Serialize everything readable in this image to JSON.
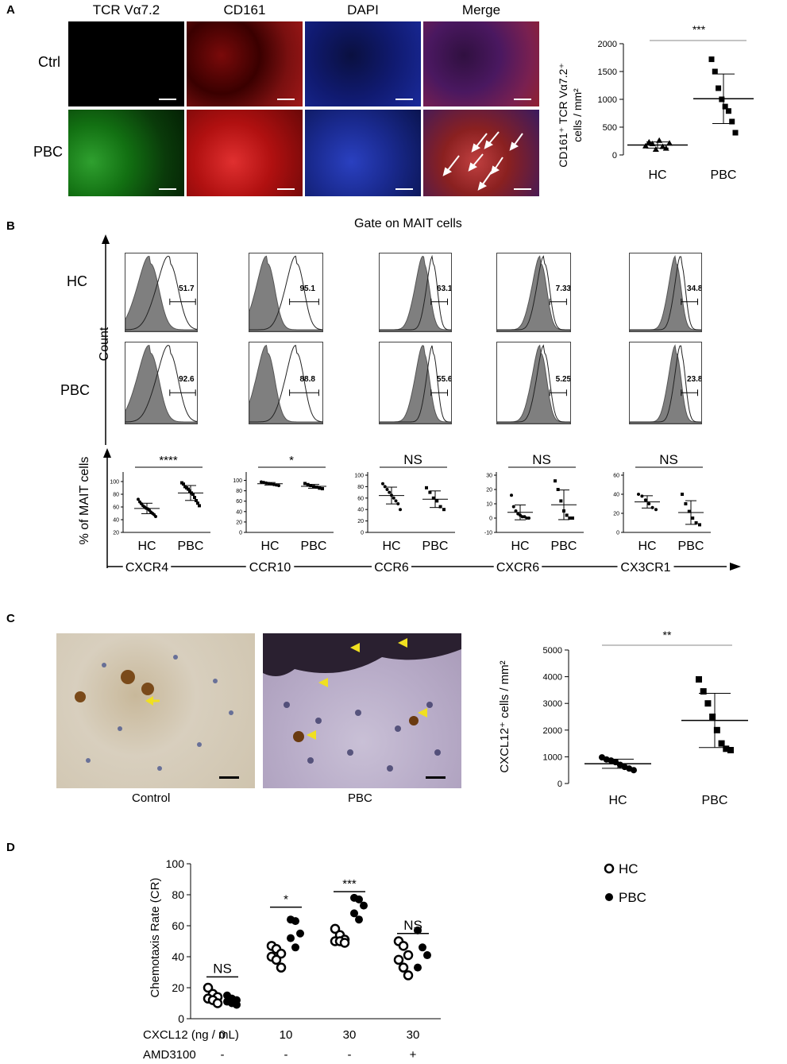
{
  "panel_a": {
    "label": "A",
    "headers": [
      "TCR Vα7.2",
      "CD161",
      "DAPI",
      "Merge"
    ],
    "header_colors": [
      "#3cb93c",
      "#e02020",
      "#2244cc",
      "#1a7a1a"
    ],
    "rows": [
      "Ctrl",
      "PBC"
    ],
    "chart": {
      "ylabel_line1": "CD161⁺ TCR Vα7.2⁺",
      "ylabel_line2": "cells / mm²",
      "yticks": [
        "0",
        "500",
        "1000",
        "1500",
        "2000"
      ],
      "categories": [
        "HC",
        "PBC"
      ],
      "significance": "***"
    }
  },
  "panel_b": {
    "label": "B",
    "title": "Gate on MAIT cells",
    "count_label": "Count",
    "rows": [
      "HC",
      "PBC"
    ],
    "markers": [
      "CXCR4",
      "CCR10",
      "CCR6",
      "CXCR6",
      "CX3CR1"
    ],
    "hc_percent": [
      "51.7",
      "95.1",
      "63.1",
      "7.33",
      "34.8"
    ],
    "pbc_percent": [
      "92.6",
      "88.8",
      "55.6",
      "5.25",
      "23.8"
    ],
    "ylabel": "% of MAIT cells",
    "significance": [
      "****",
      "*",
      "NS",
      "NS",
      "NS"
    ],
    "categories": [
      "HC",
      "PBC"
    ],
    "subplots": [
      {
        "yticks": [
          "20",
          "40",
          "60",
          "80",
          "100"
        ]
      },
      {
        "yticks": [
          "0",
          "20",
          "40",
          "60",
          "80",
          "100"
        ]
      },
      {
        "yticks": [
          "0",
          "20",
          "40",
          "60",
          "80",
          "100"
        ]
      },
      {
        "yticks": [
          "-10",
          "0",
          "10",
          "20",
          "30"
        ]
      },
      {
        "yticks": [
          "0",
          "20",
          "40",
          "60"
        ]
      }
    ]
  },
  "panel_c": {
    "label": "C",
    "image_labels": [
      "Control",
      "PBC"
    ],
    "chart": {
      "ylabel": "CXCL12⁺ cells / mm²",
      "yticks": [
        "0",
        "1000",
        "2000",
        "3000",
        "4000",
        "5000"
      ],
      "categories": [
        "HC",
        "PBC"
      ],
      "significance": "**"
    }
  },
  "panel_d": {
    "label": "D",
    "ylabel": "Chemotaxis Rate (CR)",
    "yticks": [
      "0",
      "20",
      "40",
      "60",
      "80",
      "100"
    ],
    "legend": [
      "HC",
      "PBC"
    ],
    "row1_label": "CXCL12 (ng / mL)",
    "row1_values": [
      "0",
      "10",
      "30",
      "30"
    ],
    "row2_label": "AMD3100",
    "row2_values": [
      "-",
      "-",
      "-",
      "+"
    ],
    "significance": [
      "NS",
      "*",
      "***",
      "NS"
    ]
  },
  "chart_data": [
    {
      "type": "scatter",
      "panel": "A",
      "categories": [
        "HC",
        "PBC"
      ],
      "series": [
        {
          "name": "HC",
          "values": [
            160,
            230,
            200,
            100,
            260,
            150,
            120,
            210
          ]
        },
        {
          "name": "PBC",
          "values": [
            1720,
            1500,
            1200,
            1000,
            870,
            790,
            600,
            400
          ]
        }
      ],
      "ylim": [
        0,
        2000
      ]
    },
    {
      "type": "scatter",
      "panel": "B",
      "categories": [
        "HC",
        "PBC"
      ],
      "series": [
        {
          "name": "CXCR4",
          "hc": [
            72,
            68,
            65,
            62,
            60,
            58,
            57,
            55,
            52,
            50,
            48,
            45
          ],
          "pbc": [
            98,
            96,
            92,
            90,
            88,
            85,
            82,
            80,
            75,
            70,
            66,
            62
          ],
          "ylim": [
            20,
            110
          ]
        },
        {
          "name": "CCR10",
          "hc": [
            97,
            96,
            95,
            94,
            93,
            92,
            91,
            90
          ],
          "pbc": [
            94,
            92,
            90,
            88,
            87,
            85,
            84
          ],
          "ylim": [
            0,
            110
          ]
        },
        {
          "name": "CCR6",
          "hc": [
            85,
            80,
            75,
            70,
            65,
            60,
            55,
            50,
            40
          ],
          "pbc": [
            78,
            70,
            60,
            55,
            45,
            40
          ],
          "ylim": [
            0,
            100
          ]
        },
        {
          "name": "CXCR6",
          "hc": [
            16,
            8,
            5,
            3,
            2,
            1,
            1,
            0,
            0
          ],
          "pbc": [
            26,
            20,
            12,
            5,
            2,
            0,
            0
          ],
          "ylim": [
            -10,
            30
          ]
        },
        {
          "name": "CX3CR1",
          "hc": [
            40,
            38,
            34,
            30,
            26,
            24
          ],
          "pbc": [
            40,
            30,
            22,
            15,
            10,
            8
          ],
          "ylim": [
            0,
            60
          ]
        }
      ]
    },
    {
      "type": "scatter",
      "panel": "C",
      "categories": [
        "HC",
        "PBC"
      ],
      "series": [
        {
          "name": "HC",
          "values": [
            980,
            900,
            860,
            800,
            700,
            620,
            560,
            500
          ]
        },
        {
          "name": "PBC",
          "values": [
            3900,
            3450,
            3000,
            2500,
            2000,
            1500,
            1300,
            1250
          ]
        }
      ],
      "ylim": [
        0,
        5000
      ]
    },
    {
      "type": "scatter",
      "panel": "D",
      "categories": [
        "0",
        "10",
        "30",
        "30 +AMD3100"
      ],
      "series": [
        {
          "name": "HC",
          "values": [
            [
              20,
              16,
              14,
              13,
              12,
              10
            ],
            [
              47,
              45,
              42,
              40,
              38,
              33
            ],
            [
              58,
              54,
              51,
              50,
              50,
              49
            ],
            [
              50,
              47,
              41,
              38,
              33,
              28
            ]
          ]
        },
        {
          "name": "PBC",
          "values": [
            [
              15,
              13,
              12,
              11,
              10,
              9
            ],
            [
              64,
              63,
              55,
              52,
              46
            ],
            [
              78,
              77,
              73,
              68,
              64
            ],
            [
              57,
              46,
              41,
              33
            ]
          ]
        }
      ],
      "ylim": [
        0,
        100
      ]
    }
  ]
}
